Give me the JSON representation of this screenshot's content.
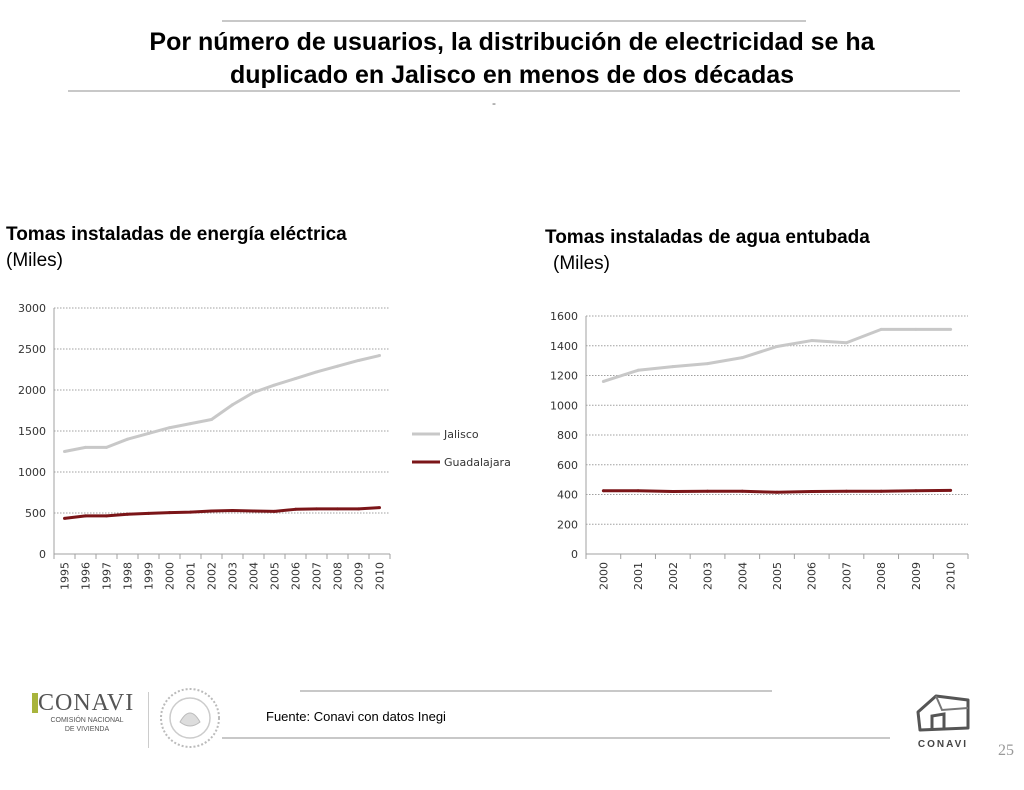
{
  "header": {
    "title_line1": "Por número de usuarios, la distribución de electricidad se ha",
    "title_line2": "duplicado en Jalisco en menos de dos décadas",
    "dash": "-"
  },
  "charts": {
    "left_title_bold": "Tomas instaladas de energía eléctrica",
    "left_title_unit": "(Miles)",
    "right_title_bold": "Tomas instaladas de agua entubada",
    "right_title_unit": "(Miles)"
  },
  "colors": {
    "jalisco": "#c8c8c8",
    "guadalajara": "#7b1518",
    "grid": "#a0a0a0",
    "axis": "#a0a0a0"
  },
  "chart_data": [
    {
      "type": "line",
      "title": "Tomas instaladas de energía eléctrica (Miles)",
      "x": [
        "1995",
        "1996",
        "1997",
        "1998",
        "1999",
        "2000",
        "2001",
        "2002",
        "2003",
        "2004",
        "2005",
        "2006",
        "2007",
        "2008",
        "2009",
        "2010"
      ],
      "ylim": [
        0,
        3000
      ],
      "yticks": [
        0,
        500,
        1000,
        1500,
        2000,
        2500,
        3000
      ],
      "legend": "right",
      "series": [
        {
          "name": "Jalisco",
          "values": [
            1250,
            1300,
            1300,
            1400,
            1470,
            1540,
            1590,
            1640,
            1820,
            1970,
            2060,
            2140,
            2220,
            2290,
            2360,
            2420
          ]
        },
        {
          "name": "Guadalajara",
          "values": [
            435,
            465,
            465,
            485,
            495,
            505,
            510,
            525,
            530,
            525,
            520,
            545,
            550,
            550,
            550,
            565
          ]
        }
      ]
    },
    {
      "type": "line",
      "title": "Tomas instaladas de agua entubada (Miles)",
      "x": [
        "2000",
        "2001",
        "2002",
        "2003",
        "2004",
        "2005",
        "2006",
        "2007",
        "2008",
        "2009",
        "2010"
      ],
      "ylim": [
        0,
        1600
      ],
      "yticks": [
        0,
        200,
        400,
        600,
        800,
        1000,
        1200,
        1400,
        1600
      ],
      "series": [
        {
          "name": "Jalisco",
          "values": [
            1160,
            1235,
            1260,
            1280,
            1320,
            1395,
            1435,
            1420,
            1510,
            1510,
            1510
          ]
        },
        {
          "name": "Guadalajara",
          "values": [
            425,
            425,
            420,
            422,
            422,
            415,
            420,
            422,
            422,
            425,
            428
          ]
        }
      ]
    }
  ],
  "footer": {
    "source": "Fuente: Conavi con datos Inegi",
    "page": "25",
    "conavi_name": "CONAVI",
    "conavi_sub1": "COMISIÓN NACIONAL",
    "conavi_sub2": "DE VIVIENDA",
    "conavi_right": "CONAVI"
  }
}
